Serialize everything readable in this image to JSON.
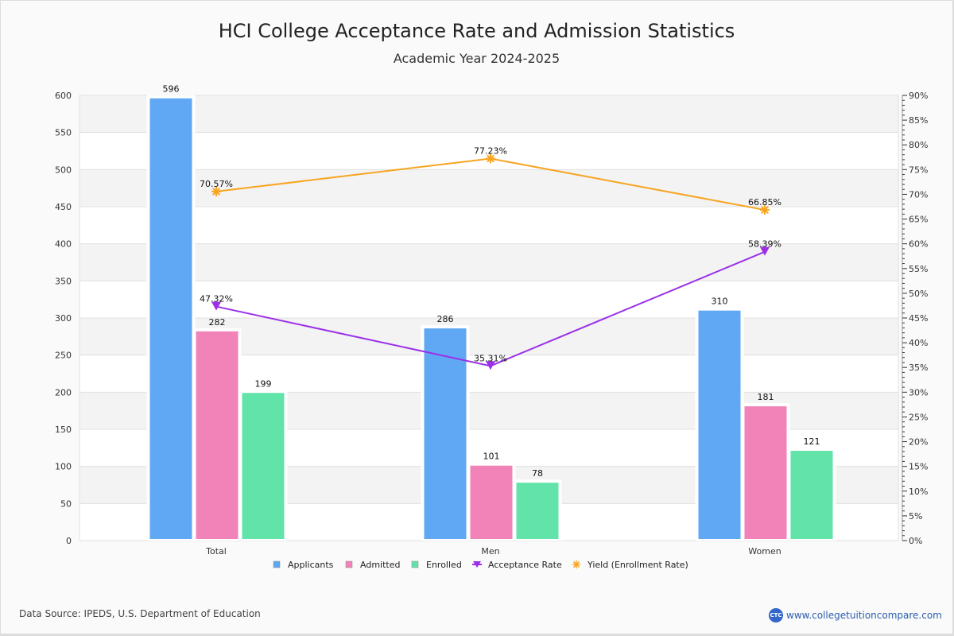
{
  "chart_data": {
    "type": "bar",
    "title": "HCI College Acceptance Rate and Admission Statistics",
    "subtitle": "Academic Year 2024-2025",
    "categories": [
      "Total",
      "Men",
      "Women"
    ],
    "series": [
      {
        "name": "Applicants",
        "kind": "bar",
        "axis": "left",
        "color": "#60a8f4",
        "values": [
          596,
          286,
          310
        ]
      },
      {
        "name": "Admitted",
        "kind": "bar",
        "axis": "left",
        "color": "#f283b9",
        "values": [
          282,
          101,
          181
        ]
      },
      {
        "name": "Enrolled",
        "kind": "bar",
        "axis": "left",
        "color": "#62e3aa",
        "values": [
          199,
          78,
          121
        ]
      },
      {
        "name": "Acceptance Rate",
        "kind": "line",
        "axis": "right",
        "marker": "triangle-down",
        "color": "#9b30e8",
        "values": [
          47.32,
          35.31,
          58.39
        ],
        "labels": [
          "47.32%",
          "35.31%",
          "58.39%"
        ]
      },
      {
        "name": "Yield (Enrollment Rate)",
        "kind": "line",
        "axis": "right",
        "marker": "asterisk",
        "color": "#f7a520",
        "values": [
          70.57,
          77.23,
          66.85
        ],
        "labels": [
          "70.57%",
          "77.23%",
          "66.85%"
        ]
      }
    ],
    "y_left": {
      "min": 0,
      "max": 600,
      "ticks": [
        0,
        50,
        100,
        150,
        200,
        250,
        300,
        350,
        400,
        450,
        500,
        550,
        600
      ]
    },
    "y_right": {
      "min": 0,
      "max": 90,
      "ticks": [
        "0%",
        "5%",
        "10%",
        "15%",
        "20%",
        "25%",
        "30%",
        "35%",
        "40%",
        "45%",
        "50%",
        "55%",
        "60%",
        "65%",
        "70%",
        "75%",
        "80%",
        "85%",
        "90%"
      ]
    },
    "grid": true,
    "legend_position": "bottom-center"
  },
  "footer": {
    "source": "Data Source: IPEDS, U.S. Department of Education",
    "brand_logo": "CTC",
    "brand_url": "www.collegetuitioncompare.com"
  }
}
